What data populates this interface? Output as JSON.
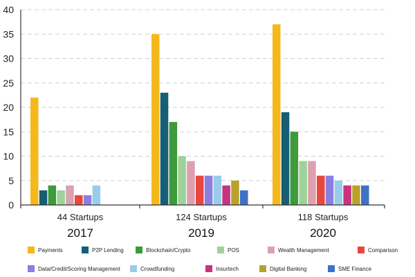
{
  "chart_data": {
    "type": "bar",
    "title": "",
    "xlabel": "",
    "ylabel": "",
    "ylim": [
      0,
      40
    ],
    "yticks": [
      0,
      5,
      10,
      15,
      20,
      25,
      30,
      35,
      40
    ],
    "grid": true,
    "legend_position": "bottom",
    "categories": [
      {
        "year": "2017",
        "label": "44 Startups"
      },
      {
        "year": "2019",
        "label": "124 Startups"
      },
      {
        "year": "2020",
        "label": "118 Startups"
      }
    ],
    "series": [
      {
        "name": "Payments",
        "color": "#F5B81C",
        "values": [
          22,
          35,
          37
        ]
      },
      {
        "name": "P2P Lending",
        "color": "#165E74",
        "values": [
          3,
          23,
          19
        ]
      },
      {
        "name": "Blockchain/Crypto",
        "color": "#3E9A3A",
        "values": [
          4,
          17,
          15
        ]
      },
      {
        "name": "POS",
        "color": "#9ED29B",
        "values": [
          3,
          10,
          9
        ]
      },
      {
        "name": "Wealth Management",
        "color": "#DDA0AE",
        "values": [
          4,
          9,
          9
        ]
      },
      {
        "name": "Comparison",
        "color": "#E8473D",
        "values": [
          2,
          6,
          6
        ]
      },
      {
        "name": "Data/Credit/Scoring Management",
        "color": "#8A7FE0",
        "values": [
          2,
          6,
          6
        ]
      },
      {
        "name": "Crowdfunding",
        "color": "#97CDEB",
        "values": [
          4,
          6,
          5
        ]
      },
      {
        "name": "Insurtech",
        "color": "#C8337F",
        "values": [
          null,
          4,
          4
        ]
      },
      {
        "name": "Digital Banking",
        "color": "#B8A22C",
        "values": [
          null,
          5,
          4
        ]
      },
      {
        "name": "SME Finance",
        "color": "#3F72C6",
        "values": [
          null,
          3,
          4
        ]
      }
    ]
  }
}
